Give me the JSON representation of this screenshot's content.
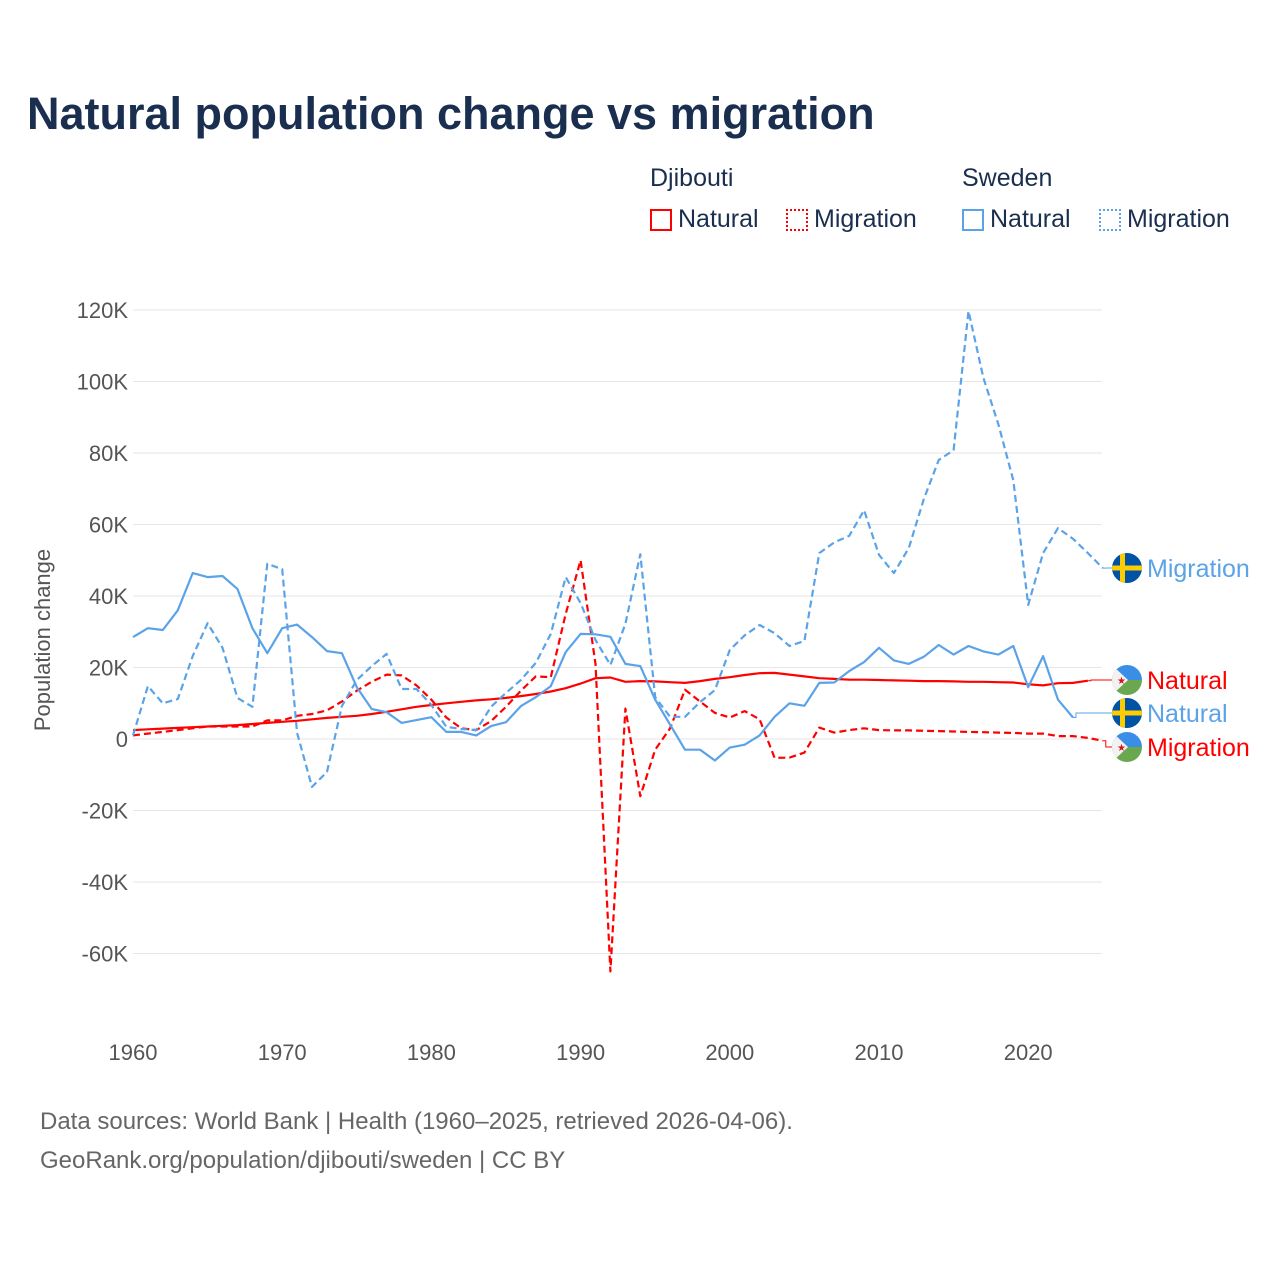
{
  "title": "Natural population change vs migration",
  "legend": {
    "groups": [
      {
        "country": "Djibouti",
        "items": [
          "Natural",
          "Migration"
        ]
      },
      {
        "country": "Sweden",
        "items": [
          "Natural",
          "Migration"
        ]
      }
    ]
  },
  "footer": {
    "line1": "Data sources: World Bank | Health (1960–2025, retrieved 2026-04-06).",
    "line2": "GeoRank.org/population/djibouti/sweden | CC BY"
  },
  "colors": {
    "djibouti": "#ff0000",
    "sweden": "#5ba3e8",
    "title": "#1a2e4f",
    "grid": "#e6e6e6"
  },
  "chart_data": {
    "type": "line",
    "title": "Natural population change vs migration",
    "xlabel": "",
    "ylabel": "Population change",
    "xlim": [
      1960,
      2025
    ],
    "ylim": [
      -70000,
      125000
    ],
    "x_ticks": [
      "1960",
      "1970",
      "1980",
      "1990",
      "2000",
      "2010",
      "2020"
    ],
    "y_ticks": [
      {
        "value": 120000,
        "label": "120K"
      },
      {
        "value": 100000,
        "label": "100K"
      },
      {
        "value": 80000,
        "label": "80K"
      },
      {
        "value": 60000,
        "label": "60K"
      },
      {
        "value": 40000,
        "label": "40K"
      },
      {
        "value": 20000,
        "label": "20K"
      },
      {
        "value": 0,
        "label": "0"
      },
      {
        "value": -20000,
        "label": "-20K"
      },
      {
        "value": -40000,
        "label": "-40K"
      },
      {
        "value": -60000,
        "label": "-60K"
      }
    ],
    "grid": true,
    "legend_position": "top-right",
    "series": [
      {
        "name": "Djibouti Natural",
        "end_label": "Natural",
        "country": "djibouti",
        "style": "solid",
        "start_year": 1960,
        "values_k": [
          2.5,
          2.7,
          2.9,
          3.1,
          3.3,
          3.5,
          3.7,
          3.9,
          4.2,
          4.5,
          4.8,
          5.1,
          5.5,
          5.9,
          6.2,
          6.5,
          7.0,
          7.6,
          8.3,
          9.0,
          9.5,
          10.0,
          10.4,
          10.8,
          11.1,
          11.5,
          12.0,
          12.6,
          13.3,
          14.2,
          15.5,
          17.0,
          17.2,
          16.0,
          16.2,
          16.1,
          15.9,
          15.7,
          16.2,
          16.8,
          17.3,
          17.9,
          18.4,
          18.5,
          18.0,
          17.5,
          17.0,
          16.8,
          16.6,
          16.6,
          16.5,
          16.4,
          16.3,
          16.2,
          16.2,
          16.1,
          16.0,
          16.0,
          15.9,
          15.8,
          15.3,
          15.0,
          15.6,
          15.7,
          16.3
        ]
      },
      {
        "name": "Djibouti Migration",
        "end_label": "Migration",
        "country": "djibouti",
        "style": "dashed",
        "start_year": 1960,
        "values_k": [
          1.0,
          1.5,
          2.0,
          2.5,
          3.0,
          3.5,
          3.5,
          3.5,
          3.5,
          5.2,
          5.2,
          6.5,
          7.0,
          8.0,
          10.5,
          13.5,
          16.0,
          18.0,
          17.8,
          15.0,
          11.0,
          6.0,
          3.0,
          2.5,
          5.0,
          9.0,
          13.5,
          17.5,
          17.3,
          35.0,
          50.0,
          21.0,
          -65.0,
          8.5,
          -16.0,
          -3.0,
          3.0,
          13.8,
          10.5,
          7.3,
          6.0,
          7.8,
          5.5,
          -5.3,
          -5.2,
          -3.8,
          3.2,
          1.8,
          2.5,
          3.0,
          2.5,
          2.4,
          2.4,
          2.3,
          2.2,
          2.1,
          2.0,
          1.9,
          1.8,
          1.7,
          1.5,
          1.5,
          0.8,
          0.8,
          0.3,
          -0.5
        ]
      },
      {
        "name": "Sweden Natural",
        "end_label": "Natural",
        "country": "sweden",
        "style": "solid",
        "start_year": 1960,
        "values_k": [
          28.5,
          31,
          30.5,
          36,
          46.4,
          45.3,
          45.6,
          42,
          31,
          24,
          31,
          32,
          28.5,
          24.6,
          24,
          14.5,
          8.4,
          7.5,
          4.5,
          5.3,
          6.1,
          2,
          2,
          1,
          3.6,
          4.7,
          9.2,
          11.7,
          14.8,
          24.3,
          29.4,
          29.3,
          28.6,
          21,
          20.4,
          11,
          4,
          -3,
          -3,
          -6,
          -2.4,
          -1.6,
          1,
          6.2,
          10,
          9.3,
          15.7,
          15.8,
          19,
          21.5,
          25.5,
          22,
          21,
          23,
          26.3,
          23.6,
          26,
          24.5,
          23.6,
          26,
          14.5,
          23.2,
          11,
          6
        ]
      },
      {
        "name": "Sweden Migration",
        "end_label": "Migration",
        "country": "sweden",
        "style": "dashed",
        "start_year": 1960,
        "values_k": [
          1,
          14.8,
          10,
          11.2,
          23.2,
          32.4,
          25.5,
          11.5,
          9,
          49,
          47.5,
          1.7,
          -13.4,
          -9.2,
          9.2,
          16.5,
          20.4,
          23.8,
          14,
          14,
          9.5,
          3.4,
          2.8,
          2.5,
          9,
          12.9,
          16.5,
          21.3,
          29.4,
          45.3,
          38,
          27.7,
          20.7,
          32.2,
          51.7,
          11.7,
          6.2,
          6.2,
          10.3,
          13.7,
          24.9,
          29,
          31.9,
          29.6,
          26,
          27.4,
          52,
          55,
          56.8,
          64,
          51.5,
          46.4,
          53.4,
          67.1,
          78,
          80.8,
          119.7,
          101,
          88,
          72.4,
          37.5,
          52,
          59,
          56,
          52,
          47.8
        ]
      }
    ]
  }
}
